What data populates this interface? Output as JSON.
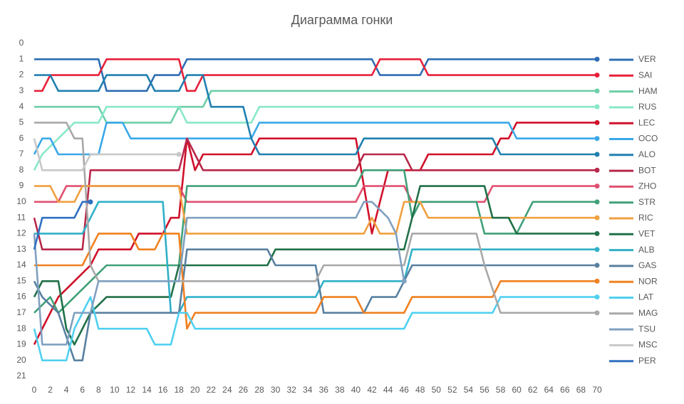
{
  "chart_data": {
    "type": "line",
    "title": "Диаграмма гонки",
    "xlim": [
      0,
      70
    ],
    "xticks": [
      0,
      2,
      4,
      6,
      8,
      10,
      12,
      14,
      16,
      18,
      20,
      22,
      24,
      26,
      28,
      30,
      32,
      34,
      36,
      38,
      40,
      42,
      44,
      46,
      48,
      50,
      52,
      54,
      56,
      58,
      60,
      62,
      64,
      66,
      68,
      70
    ],
    "ylim": [
      0,
      21
    ],
    "y_inverted": true,
    "yticks": [
      0,
      1,
      2,
      3,
      4,
      5,
      6,
      7,
      8,
      9,
      10,
      11,
      12,
      13,
      14,
      15,
      16,
      17,
      18,
      19,
      20,
      21
    ],
    "grid": false,
    "legend": "right",
    "series": [
      {
        "name": "VER",
        "color": "#2e6db4",
        "x": [
          0,
          8,
          9,
          14,
          15,
          18,
          19,
          42,
          43,
          48,
          49,
          70
        ],
        "values": [
          1,
          1,
          3,
          3,
          2,
          2,
          1,
          1,
          2,
          2,
          1,
          1
        ]
      },
      {
        "name": "SAI",
        "color": "#e8203a",
        "x": [
          0,
          1,
          2,
          8,
          9,
          18,
          19,
          20,
          21,
          42,
          43,
          48,
          49,
          70
        ],
        "values": [
          3,
          3,
          2,
          2,
          1,
          1,
          3,
          3,
          2,
          2,
          1,
          1,
          2,
          2
        ]
      },
      {
        "name": "HAM",
        "color": "#6ecfa8",
        "x": [
          0,
          8,
          9,
          17,
          18,
          21,
          22,
          70
        ],
        "values": [
          4,
          4,
          5,
          5,
          4,
          4,
          3,
          3
        ]
      },
      {
        "name": "RUS",
        "color": "#88e8c8",
        "x": [
          0,
          1,
          3,
          5,
          8,
          9,
          18,
          19,
          27,
          28,
          70
        ],
        "values": [
          8,
          7,
          6,
          5,
          5,
          4,
          4,
          5,
          5,
          4,
          4
        ]
      },
      {
        "name": "LEC",
        "color": "#d0102a",
        "x": [
          0,
          1,
          2,
          3,
          5,
          7,
          8,
          12,
          13,
          16,
          17,
          18,
          19,
          20,
          21,
          27,
          28,
          40,
          41,
          42,
          43,
          44,
          48,
          49,
          57,
          58,
          59,
          60,
          70
        ],
        "values": [
          19,
          18,
          17,
          16,
          15,
          14,
          13,
          13,
          12,
          12,
          11,
          11,
          6,
          8,
          7,
          7,
          6,
          6,
          9,
          12,
          10,
          8,
          8,
          7,
          7,
          6,
          6,
          5,
          5
        ]
      },
      {
        "name": "OCO",
        "color": "#3aa8e8",
        "x": [
          0,
          1,
          2,
          3,
          8,
          9,
          11,
          12,
          27,
          28,
          59,
          60,
          70
        ],
        "values": [
          7,
          6,
          6,
          7,
          7,
          5,
          5,
          6,
          6,
          5,
          5,
          6,
          6
        ]
      },
      {
        "name": "ALO",
        "color": "#2080b0",
        "x": [
          0,
          2,
          3,
          8,
          9,
          14,
          15,
          18,
          19,
          21,
          22,
          26,
          27,
          28,
          40,
          41,
          57,
          58,
          70
        ],
        "values": [
          2,
          2,
          3,
          3,
          2,
          2,
          3,
          3,
          2,
          2,
          4,
          4,
          6,
          7,
          7,
          6,
          6,
          7,
          7
        ]
      },
      {
        "name": "BOT",
        "color": "#b8284a",
        "x": [
          0,
          1,
          6,
          7,
          18,
          19,
          20,
          21,
          40,
          41,
          46,
          47,
          70
        ],
        "values": [
          11,
          13,
          13,
          8,
          8,
          6,
          7,
          8,
          8,
          7,
          7,
          8,
          8
        ]
      },
      {
        "name": "ZHO",
        "color": "#e05070",
        "x": [
          0,
          3,
          4,
          18,
          19,
          40,
          41,
          46,
          47,
          56,
          57,
          70
        ],
        "values": [
          10,
          10,
          9,
          9,
          10,
          10,
          9,
          9,
          10,
          10,
          9,
          9
        ]
      },
      {
        "name": "STR",
        "color": "#40a078",
        "x": [
          0,
          2,
          3,
          5,
          7,
          9,
          18,
          19,
          40,
          41,
          46,
          47,
          48,
          55,
          56,
          60,
          61,
          62,
          70
        ],
        "values": [
          17,
          16,
          17,
          16,
          15,
          14,
          14,
          9,
          9,
          8,
          8,
          11,
          10,
          10,
          12,
          12,
          11,
          10,
          10
        ]
      },
      {
        "name": "RIC",
        "color": "#f0a040",
        "x": [
          0,
          2,
          3,
          5,
          6,
          18,
          19,
          41,
          42,
          43,
          45,
          46,
          48,
          49,
          70
        ],
        "values": [
          9,
          9,
          10,
          10,
          9,
          9,
          12,
          12,
          11,
          12,
          12,
          10,
          10,
          11,
          11
        ]
      },
      {
        "name": "VET",
        "color": "#207048",
        "x": [
          0,
          1,
          3,
          4,
          5,
          6,
          7,
          9,
          17,
          18,
          29,
          30,
          46,
          47,
          48,
          56,
          57,
          59,
          60,
          70
        ],
        "values": [
          16,
          15,
          15,
          18,
          19,
          18,
          17,
          16,
          16,
          14,
          14,
          13,
          13,
          11,
          9,
          9,
          11,
          11,
          12,
          12
        ]
      },
      {
        "name": "ALB",
        "color": "#30b0c8",
        "x": [
          0,
          1,
          6,
          7,
          8,
          16,
          17,
          18,
          19,
          35,
          36,
          46,
          47,
          70
        ],
        "values": [
          12,
          12,
          12,
          11,
          10,
          10,
          17,
          17,
          16,
          16,
          15,
          15,
          13,
          13
        ]
      },
      {
        "name": "GAS",
        "color": "#5880a0",
        "x": [
          0,
          1,
          3,
          5,
          6,
          7,
          18,
          19,
          29,
          30,
          35,
          36,
          41,
          42,
          45,
          46,
          47,
          70
        ],
        "values": [
          15,
          16,
          17,
          20,
          20,
          17,
          17,
          13,
          13,
          14,
          14,
          17,
          17,
          16,
          16,
          15,
          14,
          14
        ]
      },
      {
        "name": "NOR",
        "color": "#f08020",
        "x": [
          0,
          6,
          7,
          8,
          12,
          13,
          15,
          16,
          18,
          19,
          20,
          35,
          36,
          40,
          41,
          46,
          47,
          57,
          58,
          70
        ],
        "values": [
          14,
          14,
          13,
          12,
          12,
          13,
          13,
          12,
          12,
          18,
          17,
          17,
          16,
          16,
          17,
          17,
          16,
          16,
          15,
          15
        ]
      },
      {
        "name": "LAT",
        "color": "#50d0f0",
        "x": [
          0,
          1,
          4,
          5,
          7,
          8,
          14,
          15,
          17,
          18,
          19,
          20,
          46,
          47,
          57,
          58,
          70
        ],
        "values": [
          18,
          20,
          20,
          18,
          16,
          18,
          18,
          19,
          19,
          17,
          17,
          18,
          18,
          17,
          17,
          16,
          16
        ]
      },
      {
        "name": "MAG",
        "color": "#a8a8a8",
        "x": [
          0,
          4,
          5,
          6,
          7,
          8,
          35,
          36,
          46,
          47,
          55,
          56,
          58,
          70
        ],
        "values": [
          5,
          5,
          6,
          6,
          14,
          15,
          15,
          14,
          14,
          12,
          12,
          14,
          17,
          17
        ]
      },
      {
        "name": "TSU",
        "color": "#80a0c0",
        "x": [
          0,
          1,
          4,
          5,
          7,
          8,
          18,
          19,
          40,
          41,
          42,
          44,
          45,
          46
        ],
        "values": [
          12,
          19,
          19,
          17,
          17,
          15,
          15,
          11,
          11,
          10,
          10,
          11,
          12,
          15
        ]
      },
      {
        "name": "MSC",
        "color": "#c8c8c8",
        "x": [
          0,
          1,
          6,
          7,
          18
        ],
        "values": [
          6,
          8,
          8,
          7,
          7
        ]
      },
      {
        "name": "PER",
        "color": "#3070c0",
        "x": [
          0,
          1,
          5,
          6,
          7
        ],
        "values": [
          13,
          11,
          11,
          10,
          10
        ]
      }
    ]
  }
}
